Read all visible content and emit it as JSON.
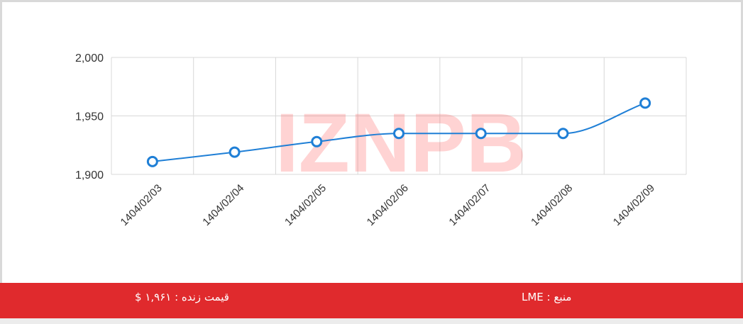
{
  "chart_data": {
    "type": "line",
    "categories": [
      "1404/02/03",
      "1404/02/04",
      "1404/02/05",
      "1404/02/06",
      "1404/02/07",
      "1404/02/08",
      "1404/02/09"
    ],
    "series": [
      {
        "values": [
          1911,
          1919,
          1928,
          1935,
          1935,
          1935,
          1961
        ]
      }
    ],
    "y_ticks": [
      "1,900",
      "1,950",
      "2,000"
    ],
    "ylim": [
      1900,
      2000
    ],
    "xlabel": "",
    "ylabel": "",
    "grid": true,
    "line_color": "#1f7fd6"
  },
  "watermark": {
    "text": "IZNPB"
  },
  "footer": {
    "price": "قیمت زنده : ۱,۹۶۱ $",
    "source": "منبع : LME",
    "color": "#e02a2d"
  }
}
